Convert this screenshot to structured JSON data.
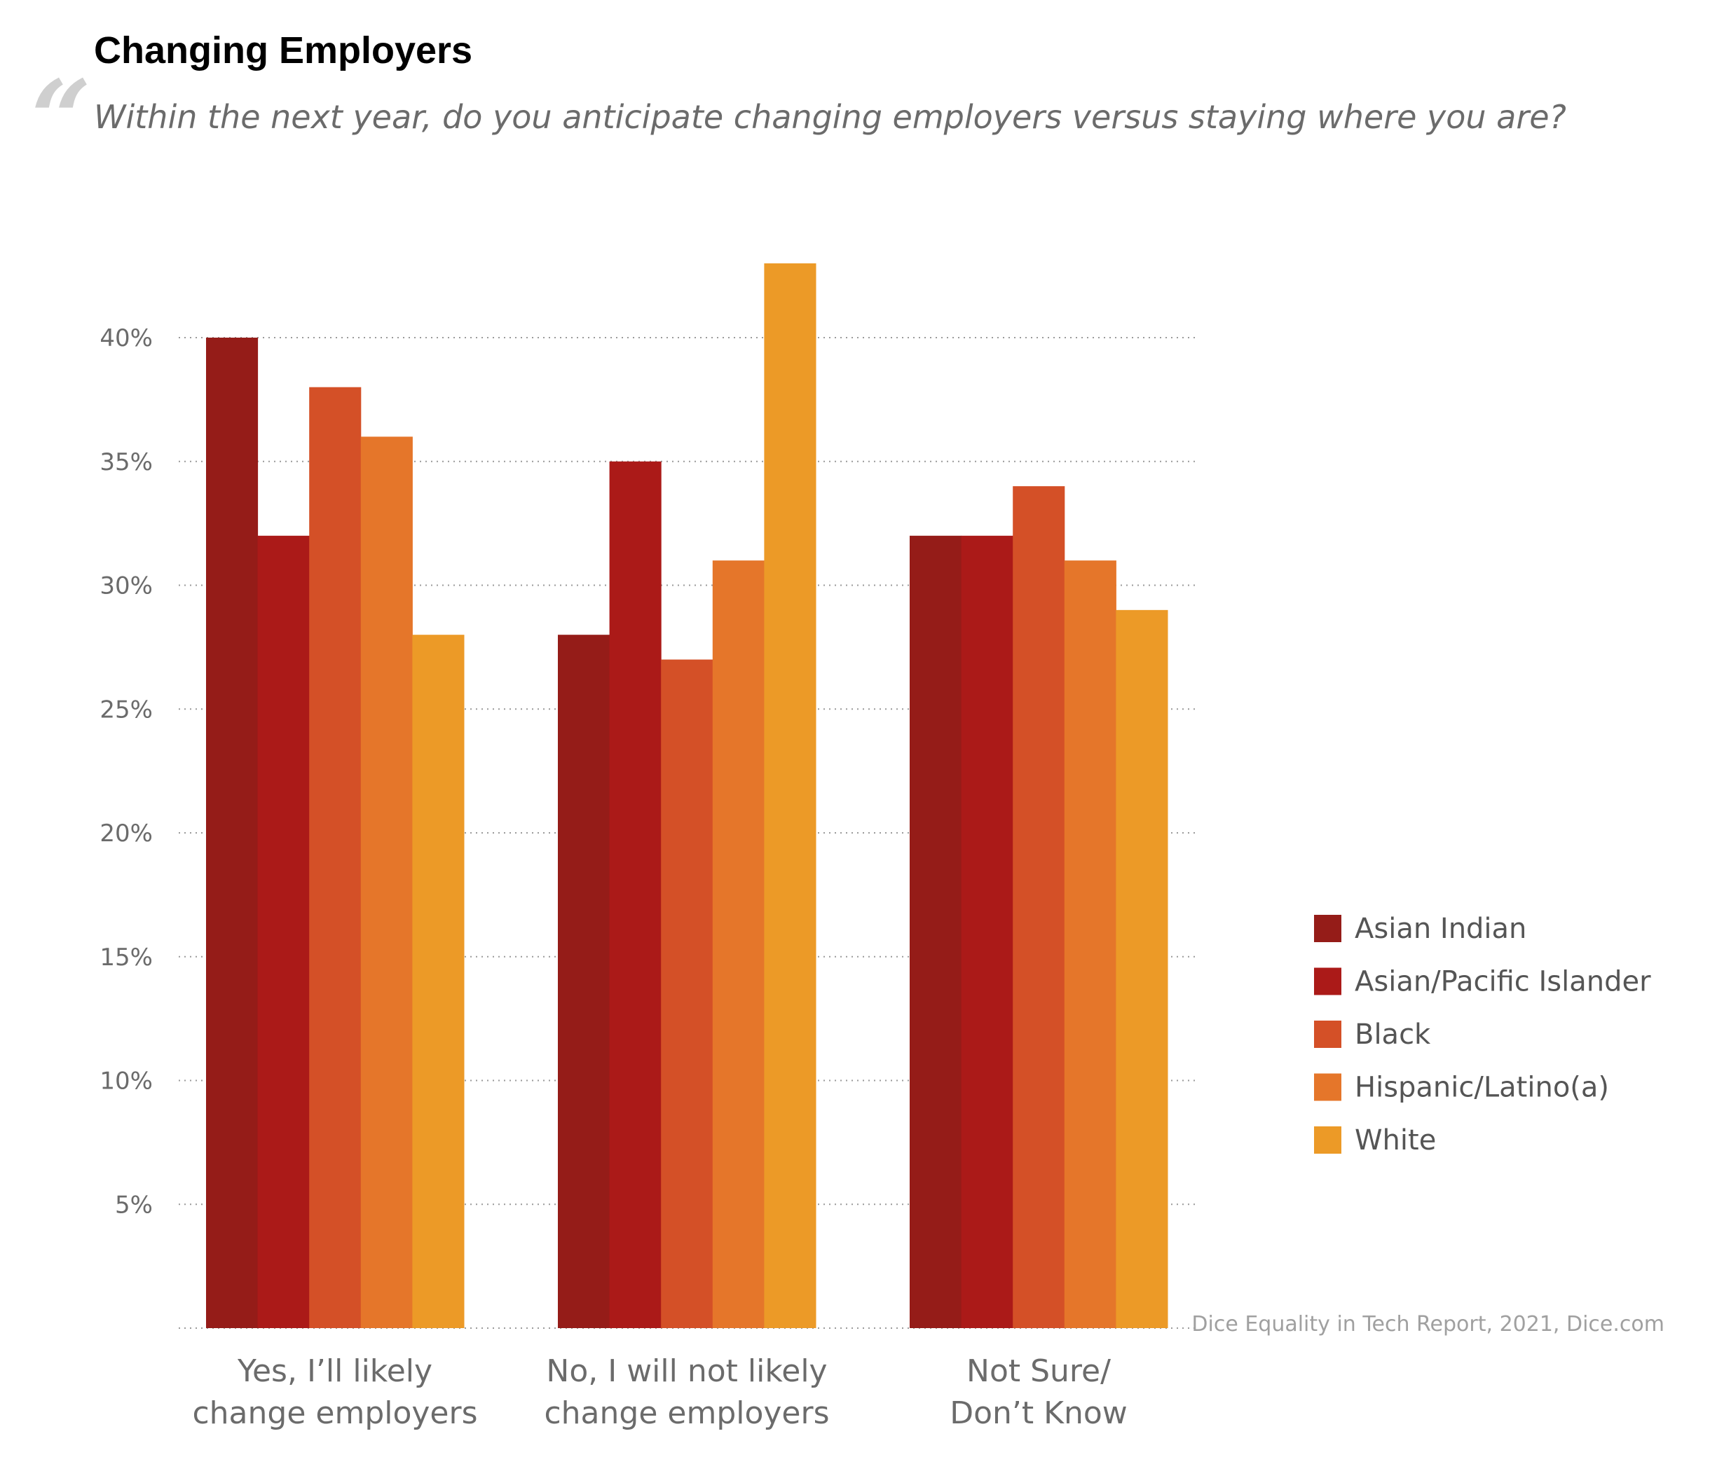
{
  "chart_data": {
    "type": "bar",
    "title": "Changing Employers",
    "subtitle": "Within the next year, do you anticipate changing employers versus staying where you are?",
    "categories": [
      [
        "Yes, I’ll likely",
        "change employers"
      ],
      [
        "No, I will not likely",
        "change employers"
      ],
      [
        "Not Sure/",
        "Don’t Know"
      ]
    ],
    "series": [
      {
        "name": "Asian Indian",
        "color": "#951c18",
        "values": [
          40,
          28,
          32
        ]
      },
      {
        "name": "Asian/Pacific Islander",
        "color": "#ab1a18",
        "values": [
          32,
          35,
          32
        ]
      },
      {
        "name": "Black",
        "color": "#d45027",
        "values": [
          38,
          27,
          34
        ]
      },
      {
        "name": "Hispanic/Latino(a)",
        "color": "#e5762a",
        "values": [
          36,
          31,
          31
        ]
      },
      {
        "name": "White",
        "color": "#ec9a27",
        "values": [
          28,
          43,
          29
        ]
      }
    ],
    "y_ticks": [
      "5%",
      "10%",
      "15%",
      "20%",
      "25%",
      "30%",
      "35%",
      "40%"
    ],
    "y_tick_values": [
      5,
      10,
      15,
      20,
      25,
      30,
      35,
      40
    ],
    "ylim": [
      0,
      45
    ],
    "grid": true,
    "legend_position": "right",
    "source": "Dice Equality in Tech Report, 2021, Dice.com"
  }
}
